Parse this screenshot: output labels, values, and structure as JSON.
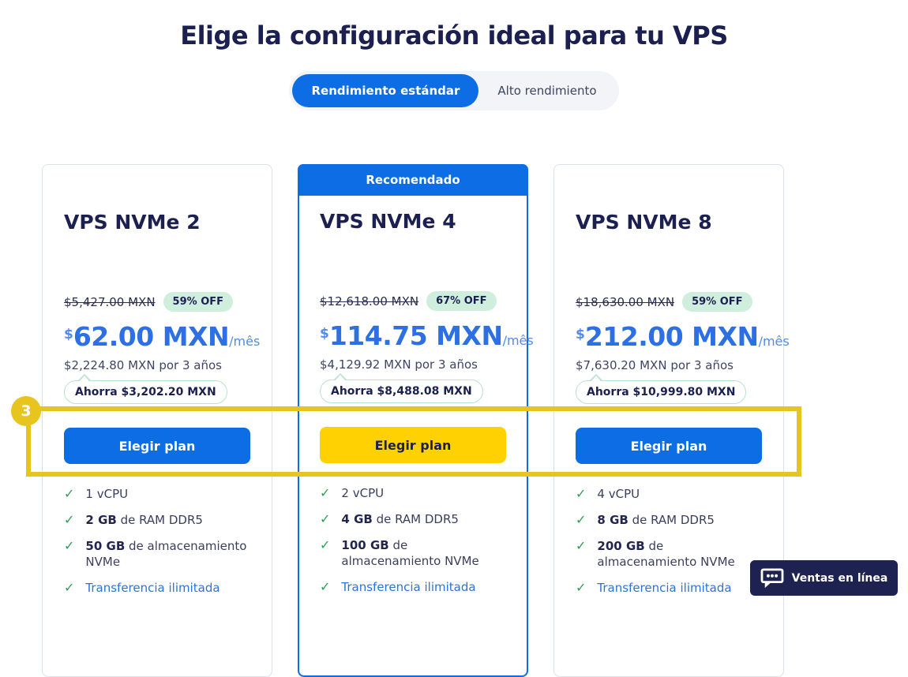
{
  "page": {
    "title": "Elige la configuración ideal para tu VPS"
  },
  "toggle": {
    "active_label": "Rendimiento estándar",
    "inactive_label": "Alto rendimiento"
  },
  "annotation": {
    "number": "3"
  },
  "chat": {
    "label": "Ventas en línea",
    "icon": "chat-bubble-icon"
  },
  "colors": {
    "accent_blue": "#0c6de4",
    "price_blue": "#2c70e4",
    "navy": "#1c2051",
    "mint_badge": "#cfeedd",
    "check_green": "#2f9e52",
    "button_yellow": "#ffd102",
    "annotation_yellow": "#e8c41f",
    "chat_navy": "#1e2250"
  },
  "cards": [
    {
      "name": "VPS NVMe 2",
      "recommended": false,
      "banner": "",
      "old_price": "$5,427.00 MXN",
      "discount": "59% OFF",
      "currency_symbol": "$",
      "price": "62.00 MXN",
      "period": "/mês",
      "term_price": "$2,224.80 MXN por 3 años",
      "savings": "Ahorra $3,202.20 MXN",
      "button": {
        "label": "Elegir plan",
        "style": "blue"
      },
      "features": [
        {
          "bold": "",
          "text": "1 vCPU",
          "link": false
        },
        {
          "bold": "2 GB",
          "text": " de RAM DDR5",
          "link": false
        },
        {
          "bold": "50 GB",
          "text": " de almacenamiento NVMe",
          "link": false
        },
        {
          "bold": "",
          "text": "Transferencia ilimitada",
          "link": true
        }
      ]
    },
    {
      "name": "VPS NVMe 4",
      "recommended": true,
      "banner": "Recomendado",
      "old_price": "$12,618.00 MXN",
      "discount": "67% OFF",
      "currency_symbol": "$",
      "price": "114.75 MXN",
      "period": "/mês",
      "term_price": "$4,129.92 MXN por 3 años",
      "savings": "Ahorra $8,488.08 MXN",
      "button": {
        "label": "Elegir plan",
        "style": "yellow"
      },
      "features": [
        {
          "bold": "",
          "text": "2 vCPU",
          "link": false
        },
        {
          "bold": "4 GB",
          "text": " de RAM DDR5",
          "link": false
        },
        {
          "bold": "100 GB",
          "text": " de almacenamiento NVMe",
          "link": false
        },
        {
          "bold": "",
          "text": "Transferencia ilimitada",
          "link": true
        }
      ]
    },
    {
      "name": "VPS NVMe 8",
      "recommended": false,
      "banner": "",
      "old_price": "$18,630.00 MXN",
      "discount": "59% OFF",
      "currency_symbol": "$",
      "price": "212.00 MXN",
      "period": "/mês",
      "term_price": "$7,630.20 MXN por 3 años",
      "savings": "Ahorra $10,999.80 MXN",
      "button": {
        "label": "Elegir plan",
        "style": "blue"
      },
      "features": [
        {
          "bold": "",
          "text": "4 vCPU",
          "link": false
        },
        {
          "bold": "8 GB",
          "text": " de RAM DDR5",
          "link": false
        },
        {
          "bold": "200 GB",
          "text": " de almacenamiento NVMe",
          "link": false
        },
        {
          "bold": "",
          "text": "Transferencia ilimitada",
          "link": true
        }
      ]
    }
  ]
}
